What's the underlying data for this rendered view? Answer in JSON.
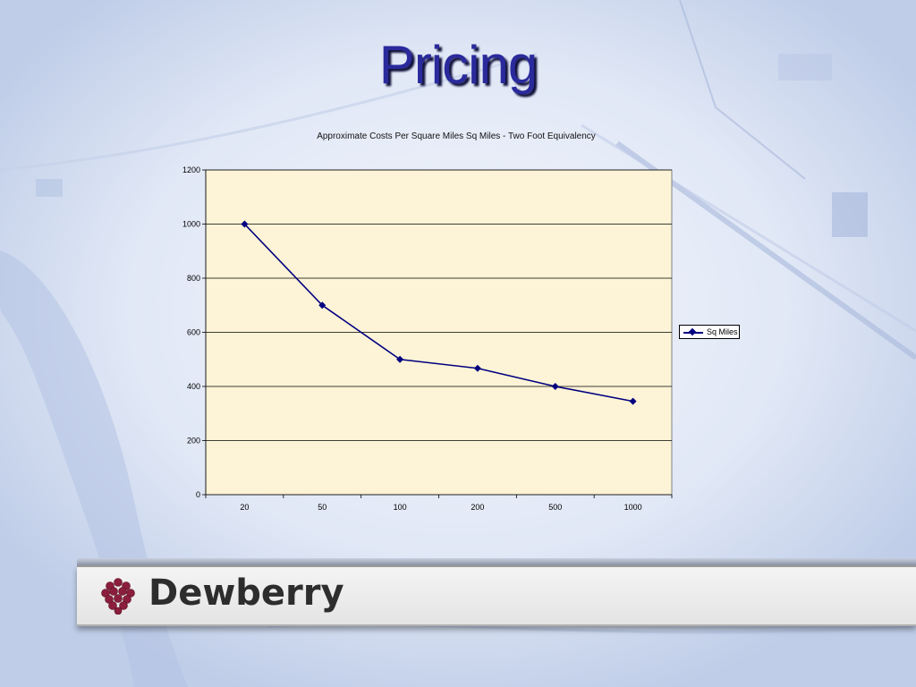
{
  "slide": {
    "title": "Pricing"
  },
  "brand": {
    "name": "Dewberry",
    "accent": "#8a1e3c"
  },
  "chart_data": {
    "type": "line",
    "title": "Approximate Costs Per Square Miles Sq Miles - Two Foot Equivalency",
    "xlabel": "",
    "ylabel": "",
    "categories": [
      "20",
      "50",
      "100",
      "200",
      "500",
      "1000"
    ],
    "series": [
      {
        "name": "Sq Miles",
        "values": [
          1000,
          700,
          500,
          467,
          400,
          345
        ],
        "color": "#000080"
      }
    ],
    "ylim": [
      0,
      1200
    ],
    "yticks": [
      0,
      200,
      400,
      600,
      800,
      1000,
      1200
    ],
    "grid": true,
    "legend": "right",
    "plot_background": "#fdf3d6"
  }
}
